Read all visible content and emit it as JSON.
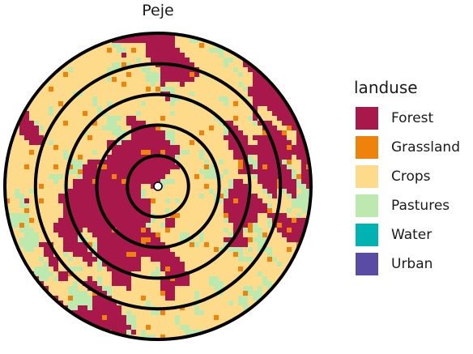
{
  "map": {
    "title": "Peje",
    "rings": 5,
    "center_point": true
  },
  "legend": {
    "title": "landuse",
    "items": [
      {
        "label": "Forest",
        "color": "#A8184A"
      },
      {
        "label": "Grassland",
        "color": "#EE820B"
      },
      {
        "label": "Crops",
        "color": "#FDDB8A"
      },
      {
        "label": "Pastures",
        "color": "#BCE9AD"
      },
      {
        "label": "Water",
        "color": "#00B3B3"
      },
      {
        "label": "Urban",
        "color": "#5A4CA4"
      }
    ]
  }
}
